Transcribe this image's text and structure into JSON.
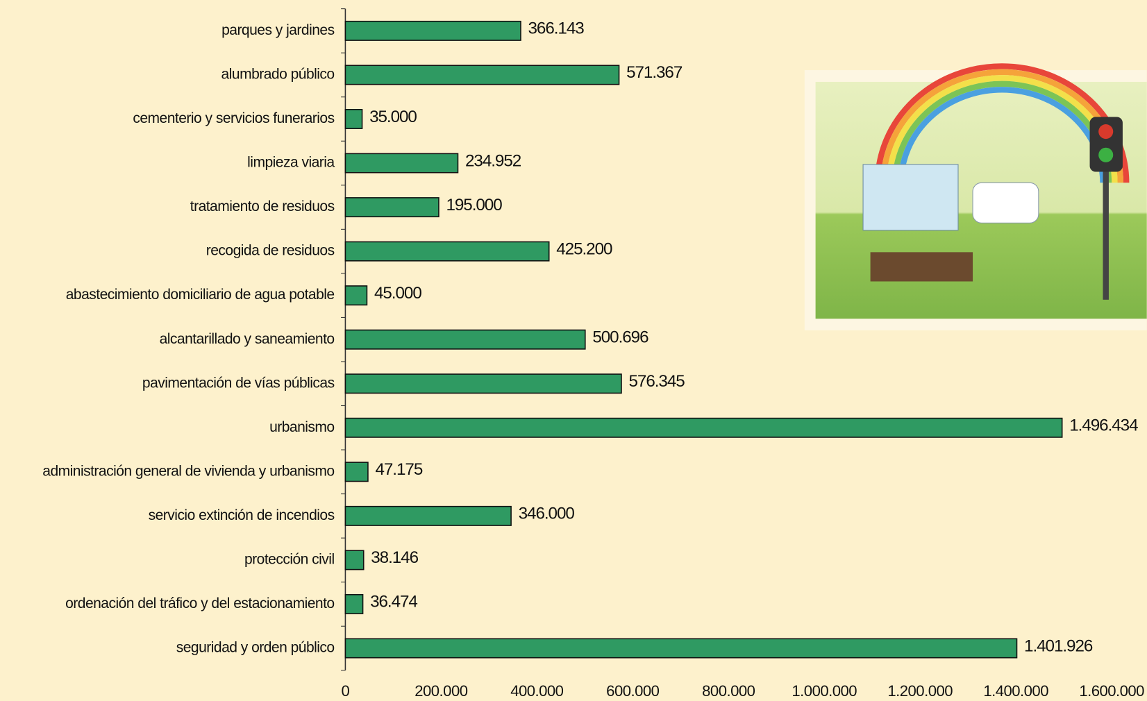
{
  "chart_data": {
    "type": "bar",
    "orientation": "horizontal",
    "categories": [
      "parques y jardines",
      "alumbrado público",
      "cementerio y servicios funerarios",
      "limpieza viaria",
      "tratamiento de residuos",
      "recogida de residuos",
      "abastecimiento domiciliario de agua potable",
      "alcantarillado y saneamiento",
      "pavimentación de vías públicas",
      "urbanismo",
      "administración general de vivienda y urbanismo",
      "servicio extinción de incendios",
      "protección civil",
      "ordenación del tráfico y del estacionamiento",
      "seguridad y orden público"
    ],
    "values": [
      366143,
      571367,
      35000,
      234952,
      195000,
      425200,
      45000,
      500696,
      576345,
      1496434,
      47175,
      346000,
      38146,
      36474,
      1401926
    ],
    "value_labels": [
      "366.143",
      "571.367",
      "35.000",
      "234.952",
      "195.000",
      "425.200",
      "45.000",
      "500.696",
      "576.345",
      "1.496.434",
      "47.175",
      "346.000",
      "38.146",
      "36.474",
      "1.401.926"
    ],
    "color": "#2f9a62",
    "xlim": [
      0,
      1600000
    ],
    "xticks": [
      0,
      {
        "value": 200000,
        "label": "200.000"
      },
      {
        "value": 400000,
        "label": "400.000"
      },
      {
        "value": 600000,
        "label": "600.000"
      },
      {
        "value": 800000,
        "label": "800.000"
      },
      {
        "value": 1000000,
        "label": "1.000.000"
      },
      {
        "value": 1200000,
        "label": "1.200.000"
      },
      {
        "value": 1400000,
        "label": "1.400.000"
      },
      {
        "value": 1600000,
        "label": "1.600.000"
      }
    ],
    "grid": false
  }
}
